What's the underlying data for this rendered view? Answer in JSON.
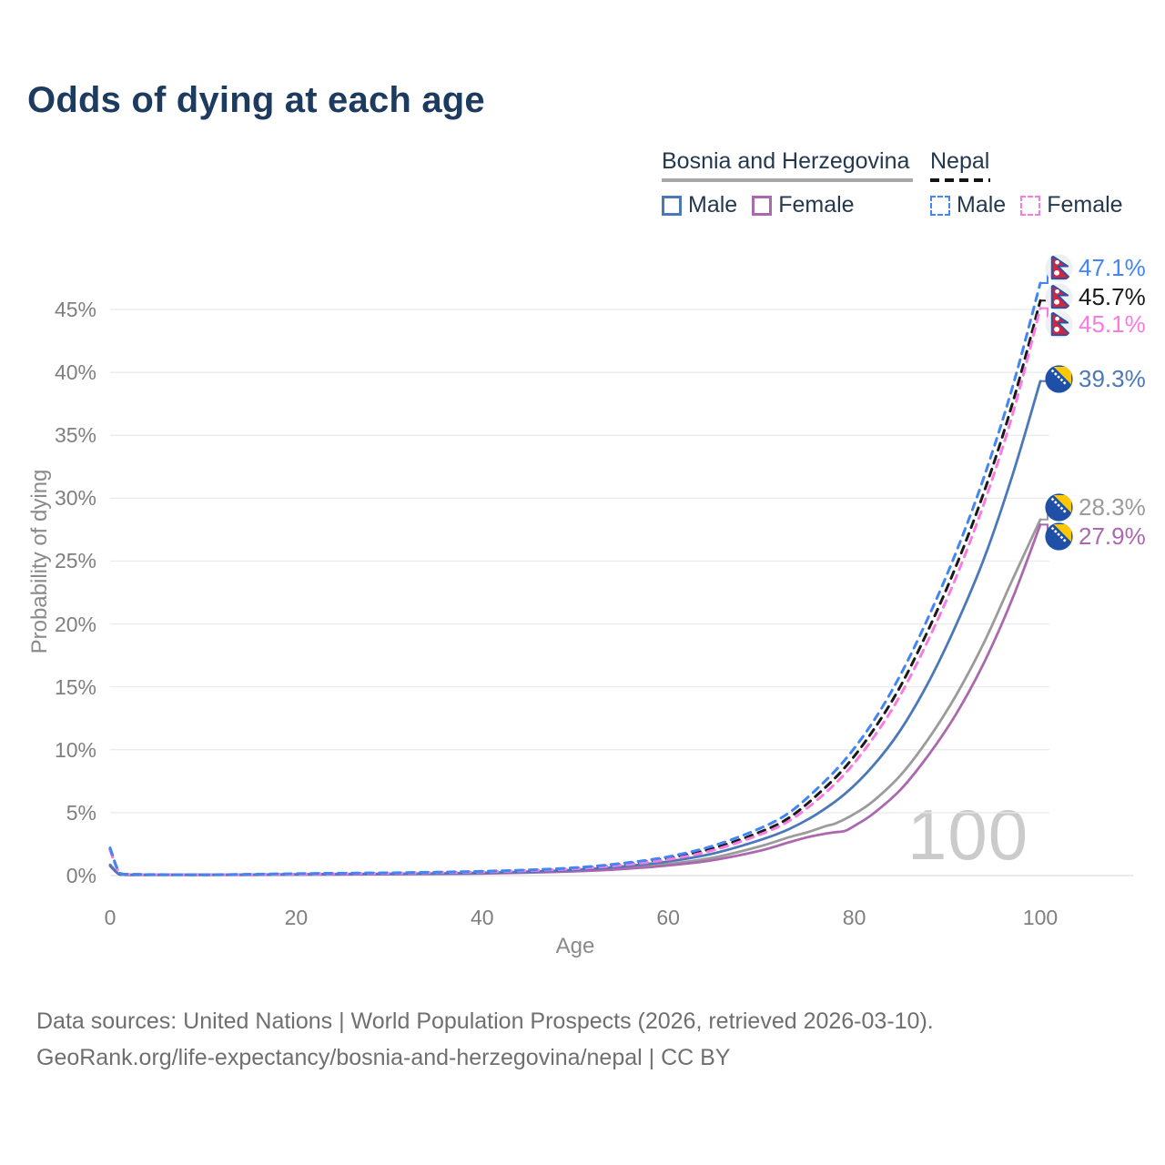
{
  "title": "Odds of dying at each age",
  "legend": {
    "groups": [
      {
        "label": "Bosnia and Herzegovina",
        "line_style": "solid",
        "underline_color": "#a8a8a8",
        "items": [
          {
            "label": "Male",
            "color": "#4a78b8",
            "dashed": false
          },
          {
            "label": "Female",
            "color": "#ab68ae",
            "dashed": false
          }
        ]
      },
      {
        "label": "Nepal",
        "line_style": "dashed",
        "underline_color": "#141414",
        "items": [
          {
            "label": "Male",
            "color": "#4285f4",
            "dashed": true
          },
          {
            "label": "Female",
            "color": "#fa7be0",
            "dashed": true
          }
        ]
      }
    ]
  },
  "chart_data": {
    "type": "line",
    "title": "Odds of dying at each age",
    "xlabel": "Age",
    "ylabel": "Probability of dying",
    "xlim": [
      0,
      100
    ],
    "ylim_percent": [
      0,
      48.5
    ],
    "x_ticks": [
      0,
      20,
      40,
      60,
      80,
      100
    ],
    "y_tick_values": [
      0,
      5,
      10,
      15,
      20,
      25,
      30,
      35,
      40,
      45
    ],
    "y_tick_labels": [
      "0%",
      "5%",
      "10%",
      "15%",
      "20%",
      "25%",
      "30%",
      "35%",
      "40%",
      "45%"
    ],
    "grid": "horizontal",
    "legend_position": "top-right",
    "age_counter": "100",
    "series": [
      {
        "name": "Nepal — Male",
        "country": "Nepal",
        "sex": "Male",
        "color": "#4285f4",
        "dash": true,
        "flag": "np",
        "end_label": "47.1%",
        "end_value_percent": 47.1,
        "points": [
          [
            0,
            2.2
          ],
          [
            1,
            0.22
          ],
          [
            2,
            0.11
          ],
          [
            5,
            0.08
          ],
          [
            10,
            0.07
          ],
          [
            15,
            0.1
          ],
          [
            20,
            0.15
          ],
          [
            25,
            0.19
          ],
          [
            30,
            0.22
          ],
          [
            35,
            0.27
          ],
          [
            40,
            0.34
          ],
          [
            45,
            0.45
          ],
          [
            50,
            0.63
          ],
          [
            55,
            0.97
          ],
          [
            60,
            1.5
          ],
          [
            65,
            2.4
          ],
          [
            70,
            3.8
          ],
          [
            73,
            5.0
          ],
          [
            76,
            6.9
          ],
          [
            79,
            9.2
          ],
          [
            82,
            12.2
          ],
          [
            85,
            16.0
          ],
          [
            88,
            20.6
          ],
          [
            91,
            25.8
          ],
          [
            94,
            31.8
          ],
          [
            97,
            38.8
          ],
          [
            100,
            47.1
          ]
        ]
      },
      {
        "name": "Nepal — Both sexes",
        "country": "Nepal",
        "sex": "All",
        "color": "#1a1a1a",
        "dash": true,
        "flag": "np",
        "end_label": "45.7%",
        "end_value_percent": 45.7,
        "points": [
          [
            0,
            2.1
          ],
          [
            1,
            0.2
          ],
          [
            2,
            0.1
          ],
          [
            5,
            0.075
          ],
          [
            10,
            0.065
          ],
          [
            15,
            0.09
          ],
          [
            20,
            0.13
          ],
          [
            25,
            0.17
          ],
          [
            30,
            0.2
          ],
          [
            35,
            0.25
          ],
          [
            40,
            0.31
          ],
          [
            45,
            0.42
          ],
          [
            50,
            0.58
          ],
          [
            55,
            0.9
          ],
          [
            60,
            1.38
          ],
          [
            65,
            2.2
          ],
          [
            70,
            3.5
          ],
          [
            73,
            4.6
          ],
          [
            76,
            6.4
          ],
          [
            79,
            8.6
          ],
          [
            82,
            11.5
          ],
          [
            85,
            15.1
          ],
          [
            88,
            19.6
          ],
          [
            91,
            24.7
          ],
          [
            94,
            30.6
          ],
          [
            97,
            37.5
          ],
          [
            100,
            45.7
          ]
        ]
      },
      {
        "name": "Nepal — Female",
        "country": "Nepal",
        "sex": "Female",
        "color": "#fa7be0",
        "dash": true,
        "flag": "np",
        "end_label": "45.1%",
        "end_value_percent": 45.1,
        "points": [
          [
            0,
            2.0
          ],
          [
            1,
            0.19
          ],
          [
            2,
            0.095
          ],
          [
            5,
            0.07
          ],
          [
            10,
            0.06
          ],
          [
            15,
            0.08
          ],
          [
            20,
            0.11
          ],
          [
            25,
            0.15
          ],
          [
            30,
            0.18
          ],
          [
            35,
            0.23
          ],
          [
            40,
            0.29
          ],
          [
            45,
            0.39
          ],
          [
            50,
            0.54
          ],
          [
            55,
            0.83
          ],
          [
            60,
            1.28
          ],
          [
            65,
            2.05
          ],
          [
            70,
            3.3
          ],
          [
            73,
            4.35
          ],
          [
            76,
            6.0
          ],
          [
            79,
            8.1
          ],
          [
            82,
            10.9
          ],
          [
            85,
            14.4
          ],
          [
            88,
            18.8
          ],
          [
            91,
            23.8
          ],
          [
            94,
            29.7
          ],
          [
            97,
            36.6
          ],
          [
            100,
            45.1
          ]
        ]
      },
      {
        "name": "Bosnia and Herzegovina — Male",
        "country": "Bosnia and Herzegovina",
        "sex": "Male",
        "color": "#4a78b8",
        "dash": false,
        "flag": "ba",
        "end_label": "39.3%",
        "end_value_percent": 39.3,
        "points": [
          [
            0,
            0.85
          ],
          [
            1,
            0.1
          ],
          [
            2,
            0.06
          ],
          [
            5,
            0.05
          ],
          [
            10,
            0.05
          ],
          [
            15,
            0.07
          ],
          [
            20,
            0.1
          ],
          [
            25,
            0.12
          ],
          [
            30,
            0.14
          ],
          [
            35,
            0.17
          ],
          [
            40,
            0.22
          ],
          [
            45,
            0.31
          ],
          [
            50,
            0.46
          ],
          [
            55,
            0.72
          ],
          [
            60,
            1.12
          ],
          [
            65,
            1.78
          ],
          [
            70,
            2.85
          ],
          [
            73,
            3.7
          ],
          [
            76,
            4.9
          ],
          [
            79,
            6.5
          ],
          [
            82,
            8.7
          ],
          [
            85,
            11.6
          ],
          [
            88,
            15.4
          ],
          [
            91,
            20.0
          ],
          [
            94,
            25.3
          ],
          [
            97,
            31.8
          ],
          [
            100,
            39.3
          ]
        ]
      },
      {
        "name": "Bosnia and Herzegovina — Both sexes",
        "country": "Bosnia and Herzegovina",
        "sex": "All",
        "color": "#9b9b9b",
        "dash": false,
        "flag": "ba",
        "end_label": "28.3%",
        "end_value_percent": 28.3,
        "points": [
          [
            0,
            0.8
          ],
          [
            1,
            0.09
          ],
          [
            2,
            0.055
          ],
          [
            5,
            0.045
          ],
          [
            10,
            0.045
          ],
          [
            15,
            0.06
          ],
          [
            20,
            0.08
          ],
          [
            25,
            0.1
          ],
          [
            30,
            0.12
          ],
          [
            35,
            0.15
          ],
          [
            40,
            0.19
          ],
          [
            45,
            0.27
          ],
          [
            50,
            0.39
          ],
          [
            55,
            0.6
          ],
          [
            60,
            0.92
          ],
          [
            65,
            1.45
          ],
          [
            70,
            2.35
          ],
          [
            73,
            3.05
          ],
          [
            75,
            3.45
          ],
          [
            77,
            3.95
          ],
          [
            78,
            4.15
          ],
          [
            80,
            4.9
          ],
          [
            82,
            5.9
          ],
          [
            85,
            8.0
          ],
          [
            88,
            10.9
          ],
          [
            91,
            14.4
          ],
          [
            94,
            18.6
          ],
          [
            97,
            23.5
          ],
          [
            100,
            28.3
          ]
        ]
      },
      {
        "name": "Bosnia and Herzegovina — Female",
        "country": "Bosnia and Herzegovina",
        "sex": "Female",
        "color": "#ab68ae",
        "dash": false,
        "flag": "ba",
        "end_label": "27.9%",
        "end_value_percent": 27.9,
        "points": [
          [
            0,
            0.75
          ],
          [
            1,
            0.085
          ],
          [
            2,
            0.05
          ],
          [
            5,
            0.04
          ],
          [
            10,
            0.04
          ],
          [
            15,
            0.05
          ],
          [
            20,
            0.07
          ],
          [
            25,
            0.09
          ],
          [
            30,
            0.11
          ],
          [
            35,
            0.13
          ],
          [
            40,
            0.17
          ],
          [
            45,
            0.24
          ],
          [
            50,
            0.34
          ],
          [
            55,
            0.52
          ],
          [
            60,
            0.8
          ],
          [
            65,
            1.25
          ],
          [
            70,
            2.0
          ],
          [
            73,
            2.65
          ],
          [
            75,
            3.05
          ],
          [
            77,
            3.35
          ],
          [
            78,
            3.45
          ],
          [
            79,
            3.55
          ],
          [
            80,
            3.95
          ],
          [
            82,
            4.9
          ],
          [
            85,
            6.85
          ],
          [
            88,
            9.6
          ],
          [
            91,
            12.9
          ],
          [
            94,
            17.0
          ],
          [
            97,
            22.0
          ],
          [
            100,
            27.9
          ]
        ]
      }
    ]
  },
  "footer": {
    "line1": "Data sources: United Nations | World Population Prospects (2026, retrieved 2026-03-10).",
    "line2": "GeoRank.org/life-expectancy/bosnia-and-herzegovina/nepal | CC BY"
  }
}
